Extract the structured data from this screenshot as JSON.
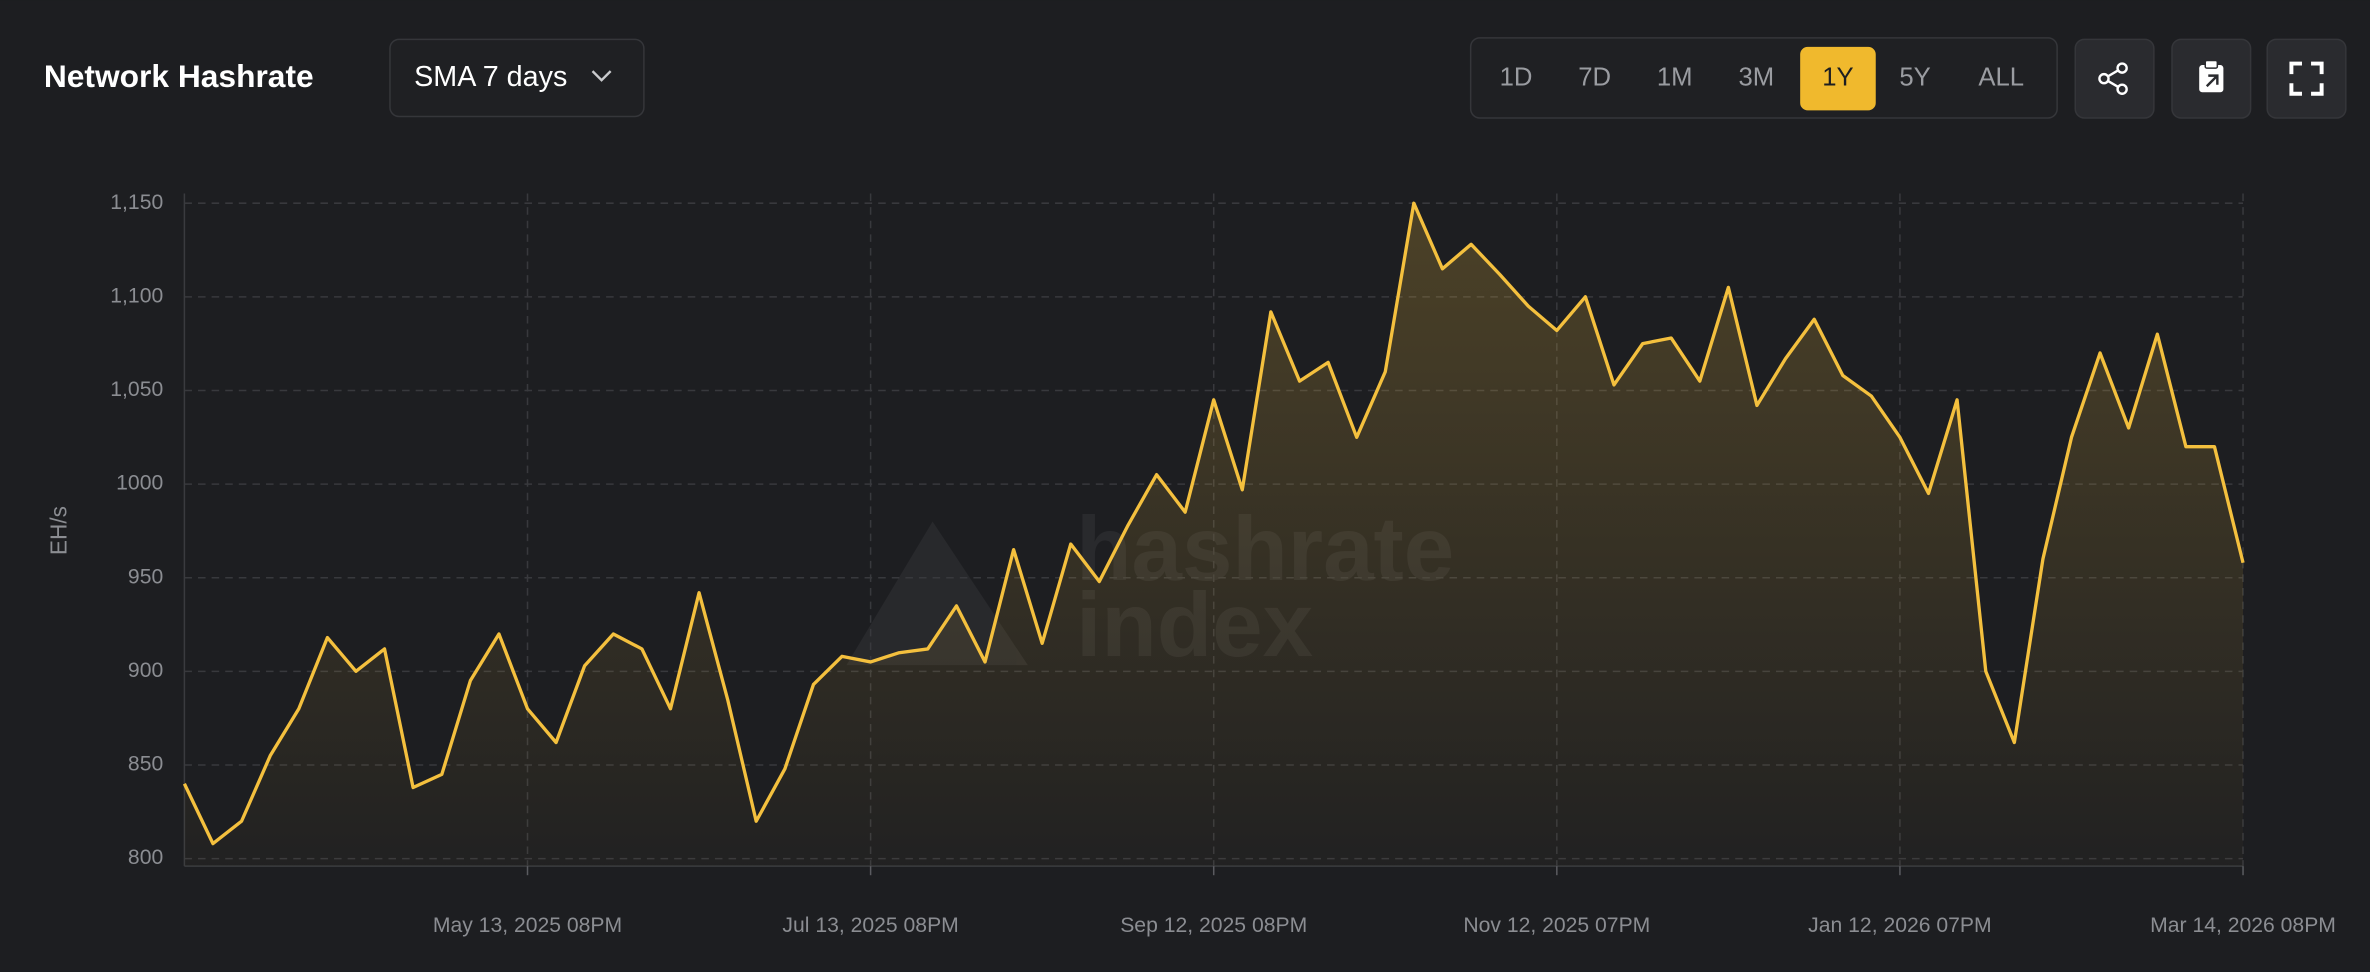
{
  "chart_data": {
    "type": "line",
    "title": "Network Hashrate",
    "ylabel": "EH/s",
    "watermark": [
      "hashrate",
      "index"
    ],
    "categories": [
      null,
      null,
      null,
      null,
      null,
      null,
      null,
      null,
      null,
      null,
      null,
      null,
      "May 13, 2025 08PM",
      null,
      null,
      null,
      null,
      null,
      null,
      null,
      null,
      null,
      null,
      null,
      "Jul 13, 2025 08PM",
      null,
      null,
      null,
      null,
      null,
      null,
      null,
      null,
      null,
      null,
      null,
      "Sep 12, 2025 08PM",
      null,
      null,
      null,
      null,
      null,
      null,
      null,
      null,
      null,
      null,
      null,
      "Nov 12, 2025 07PM",
      null,
      null,
      null,
      null,
      null,
      null,
      null,
      null,
      null,
      null,
      null,
      "Jan 12, 2026 07PM",
      null,
      null,
      null,
      null,
      null,
      null,
      null,
      null,
      null,
      null,
      null,
      "Mar 14, 2026 08PM"
    ],
    "series": [
      {
        "name": "SMA 7 days",
        "color": "#f4c03e",
        "values": [
          840,
          808,
          820,
          855,
          880,
          918,
          900,
          912,
          838,
          845,
          895,
          920,
          880,
          862,
          903,
          920,
          912,
          880,
          942,
          885,
          820,
          848,
          893,
          908,
          905,
          910,
          912,
          935,
          905,
          965,
          915,
          968,
          948,
          978,
          1005,
          985,
          1045,
          997,
          1092,
          1055,
          1065,
          1025,
          1060,
          1150,
          1115,
          1128,
          1112,
          1095,
          1082,
          1100,
          1053,
          1075,
          1078,
          1055,
          1105,
          1042,
          1067,
          1088,
          1058,
          1047,
          1025,
          995,
          1045,
          900,
          862,
          960,
          1025,
          1070,
          1030,
          1080,
          1020,
          1020,
          958
        ]
      }
    ],
    "ylim": [
      796,
      1160
    ],
    "yticks": [
      800,
      850,
      900,
      950,
      1000,
      {
        "value": 1050,
        "label": "1,050"
      },
      {
        "value": 1100,
        "label": "1,100"
      },
      {
        "value": 1150,
        "label": "1,150"
      }
    ],
    "grid": true
  },
  "controls": {
    "dropdown": "SMA 7 days",
    "time_ranges": [
      {
        "label": "1D",
        "active": false
      },
      {
        "label": "7D",
        "active": false
      },
      {
        "label": "1M",
        "active": false
      },
      {
        "label": "3M",
        "active": false
      },
      {
        "label": "1Y",
        "active": true
      },
      {
        "label": "5Y",
        "active": false
      },
      {
        "label": "ALL",
        "active": false
      }
    ]
  }
}
